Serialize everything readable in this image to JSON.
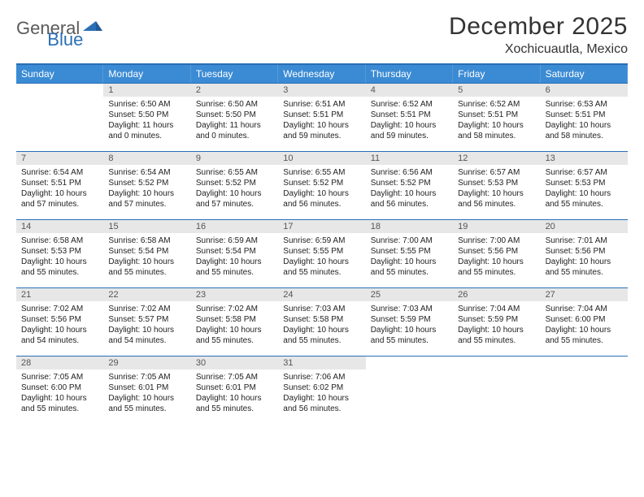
{
  "logo": {
    "text1": "General",
    "text2": "Blue"
  },
  "title": "December 2025",
  "location": "Xochicuautla, Mexico",
  "colors": {
    "header_bg": "#3b8bd4",
    "rule": "#2a6fb5",
    "daynum_bg": "#e7e7e7",
    "text": "#222222",
    "logo_gray": "#5a5a5a",
    "logo_blue": "#2a6fb5"
  },
  "days_of_week": [
    "Sunday",
    "Monday",
    "Tuesday",
    "Wednesday",
    "Thursday",
    "Friday",
    "Saturday"
  ],
  "first_dow_index": 1,
  "days": [
    {
      "n": 1,
      "sr": "6:50 AM",
      "ss": "5:50 PM",
      "dl": "11 hours and 0 minutes."
    },
    {
      "n": 2,
      "sr": "6:50 AM",
      "ss": "5:50 PM",
      "dl": "11 hours and 0 minutes."
    },
    {
      "n": 3,
      "sr": "6:51 AM",
      "ss": "5:51 PM",
      "dl": "10 hours and 59 minutes."
    },
    {
      "n": 4,
      "sr": "6:52 AM",
      "ss": "5:51 PM",
      "dl": "10 hours and 59 minutes."
    },
    {
      "n": 5,
      "sr": "6:52 AM",
      "ss": "5:51 PM",
      "dl": "10 hours and 58 minutes."
    },
    {
      "n": 6,
      "sr": "6:53 AM",
      "ss": "5:51 PM",
      "dl": "10 hours and 58 minutes."
    },
    {
      "n": 7,
      "sr": "6:54 AM",
      "ss": "5:51 PM",
      "dl": "10 hours and 57 minutes."
    },
    {
      "n": 8,
      "sr": "6:54 AM",
      "ss": "5:52 PM",
      "dl": "10 hours and 57 minutes."
    },
    {
      "n": 9,
      "sr": "6:55 AM",
      "ss": "5:52 PM",
      "dl": "10 hours and 57 minutes."
    },
    {
      "n": 10,
      "sr": "6:55 AM",
      "ss": "5:52 PM",
      "dl": "10 hours and 56 minutes."
    },
    {
      "n": 11,
      "sr": "6:56 AM",
      "ss": "5:52 PM",
      "dl": "10 hours and 56 minutes."
    },
    {
      "n": 12,
      "sr": "6:57 AM",
      "ss": "5:53 PM",
      "dl": "10 hours and 56 minutes."
    },
    {
      "n": 13,
      "sr": "6:57 AM",
      "ss": "5:53 PM",
      "dl": "10 hours and 55 minutes."
    },
    {
      "n": 14,
      "sr": "6:58 AM",
      "ss": "5:53 PM",
      "dl": "10 hours and 55 minutes."
    },
    {
      "n": 15,
      "sr": "6:58 AM",
      "ss": "5:54 PM",
      "dl": "10 hours and 55 minutes."
    },
    {
      "n": 16,
      "sr": "6:59 AM",
      "ss": "5:54 PM",
      "dl": "10 hours and 55 minutes."
    },
    {
      "n": 17,
      "sr": "6:59 AM",
      "ss": "5:55 PM",
      "dl": "10 hours and 55 minutes."
    },
    {
      "n": 18,
      "sr": "7:00 AM",
      "ss": "5:55 PM",
      "dl": "10 hours and 55 minutes."
    },
    {
      "n": 19,
      "sr": "7:00 AM",
      "ss": "5:56 PM",
      "dl": "10 hours and 55 minutes."
    },
    {
      "n": 20,
      "sr": "7:01 AM",
      "ss": "5:56 PM",
      "dl": "10 hours and 55 minutes."
    },
    {
      "n": 21,
      "sr": "7:02 AM",
      "ss": "5:56 PM",
      "dl": "10 hours and 54 minutes."
    },
    {
      "n": 22,
      "sr": "7:02 AM",
      "ss": "5:57 PM",
      "dl": "10 hours and 54 minutes."
    },
    {
      "n": 23,
      "sr": "7:02 AM",
      "ss": "5:58 PM",
      "dl": "10 hours and 55 minutes."
    },
    {
      "n": 24,
      "sr": "7:03 AM",
      "ss": "5:58 PM",
      "dl": "10 hours and 55 minutes."
    },
    {
      "n": 25,
      "sr": "7:03 AM",
      "ss": "5:59 PM",
      "dl": "10 hours and 55 minutes."
    },
    {
      "n": 26,
      "sr": "7:04 AM",
      "ss": "5:59 PM",
      "dl": "10 hours and 55 minutes."
    },
    {
      "n": 27,
      "sr": "7:04 AM",
      "ss": "6:00 PM",
      "dl": "10 hours and 55 minutes."
    },
    {
      "n": 28,
      "sr": "7:05 AM",
      "ss": "6:00 PM",
      "dl": "10 hours and 55 minutes."
    },
    {
      "n": 29,
      "sr": "7:05 AM",
      "ss": "6:01 PM",
      "dl": "10 hours and 55 minutes."
    },
    {
      "n": 30,
      "sr": "7:05 AM",
      "ss": "6:01 PM",
      "dl": "10 hours and 55 minutes."
    },
    {
      "n": 31,
      "sr": "7:06 AM",
      "ss": "6:02 PM",
      "dl": "10 hours and 56 minutes."
    }
  ],
  "labels": {
    "sunrise": "Sunrise:",
    "sunset": "Sunset:",
    "daylight": "Daylight:"
  }
}
